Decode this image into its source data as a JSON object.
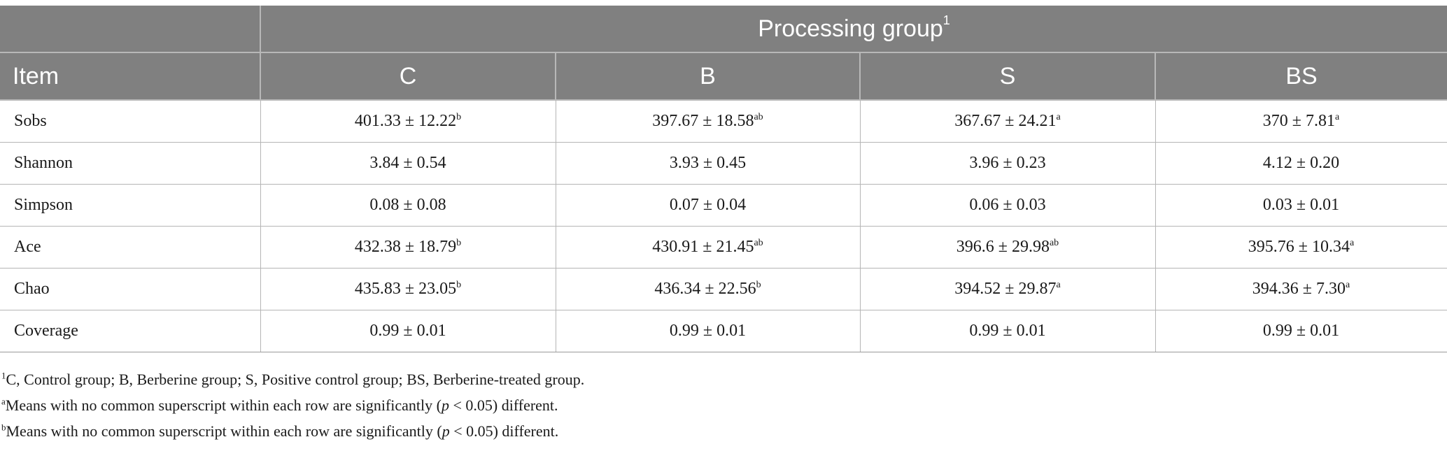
{
  "table": {
    "group_header": "Processing group",
    "group_header_sup": "1",
    "item_header": "Item",
    "columns": [
      "C",
      "B",
      "S",
      "BS"
    ],
    "rows": [
      {
        "item": "Sobs",
        "cells": [
          {
            "value": "401.33 ± 12.22",
            "sup": "b"
          },
          {
            "value": "397.67 ± 18.58",
            "sup": "ab"
          },
          {
            "value": "367.67 ± 24.21",
            "sup": "a"
          },
          {
            "value": "370 ± 7.81",
            "sup": "a"
          }
        ]
      },
      {
        "item": "Shannon",
        "cells": [
          {
            "value": "3.84 ± 0.54",
            "sup": ""
          },
          {
            "value": "3.93 ± 0.45",
            "sup": ""
          },
          {
            "value": "3.96 ± 0.23",
            "sup": ""
          },
          {
            "value": "4.12 ± 0.20",
            "sup": ""
          }
        ]
      },
      {
        "item": "Simpson",
        "cells": [
          {
            "value": "0.08 ± 0.08",
            "sup": ""
          },
          {
            "value": "0.07 ± 0.04",
            "sup": ""
          },
          {
            "value": "0.06 ± 0.03",
            "sup": ""
          },
          {
            "value": "0.03 ± 0.01",
            "sup": ""
          }
        ]
      },
      {
        "item": "Ace",
        "cells": [
          {
            "value": "432.38 ± 18.79",
            "sup": "b"
          },
          {
            "value": "430.91 ± 21.45",
            "sup": "ab"
          },
          {
            "value": "396.6 ± 29.98",
            "sup": "ab"
          },
          {
            "value": "395.76 ± 10.34",
            "sup": "a"
          }
        ]
      },
      {
        "item": "Chao",
        "cells": [
          {
            "value": "435.83 ± 23.05",
            "sup": "b"
          },
          {
            "value": "436.34 ± 22.56",
            "sup": "b"
          },
          {
            "value": "394.52 ± 29.87",
            "sup": "a"
          },
          {
            "value": "394.36 ± 7.30",
            "sup": "a"
          }
        ]
      },
      {
        "item": "Coverage",
        "cells": [
          {
            "value": "0.99 ± 0.01",
            "sup": ""
          },
          {
            "value": "0.99 ± 0.01",
            "sup": ""
          },
          {
            "value": "0.99 ± 0.01",
            "sup": ""
          },
          {
            "value": "0.99 ± 0.01",
            "sup": ""
          }
        ]
      }
    ]
  },
  "footnotes": {
    "n1": {
      "mark": "1",
      "text": "C, Control group; B, Berberine group; S, Positive control group; BS, Berberine-treated group."
    },
    "na": {
      "mark": "a",
      "pre": "Means with no common superscript within each row are significantly (",
      "p": "p",
      "post": " < 0.05) different."
    },
    "nb": {
      "mark": "b",
      "pre": "Means with no common superscript within each row are significantly (",
      "p": "p",
      "post": " < 0.05) different."
    }
  },
  "colors": {
    "header_bg": "#808080",
    "header_text": "#ffffff",
    "grid": "#b5b5b5"
  }
}
